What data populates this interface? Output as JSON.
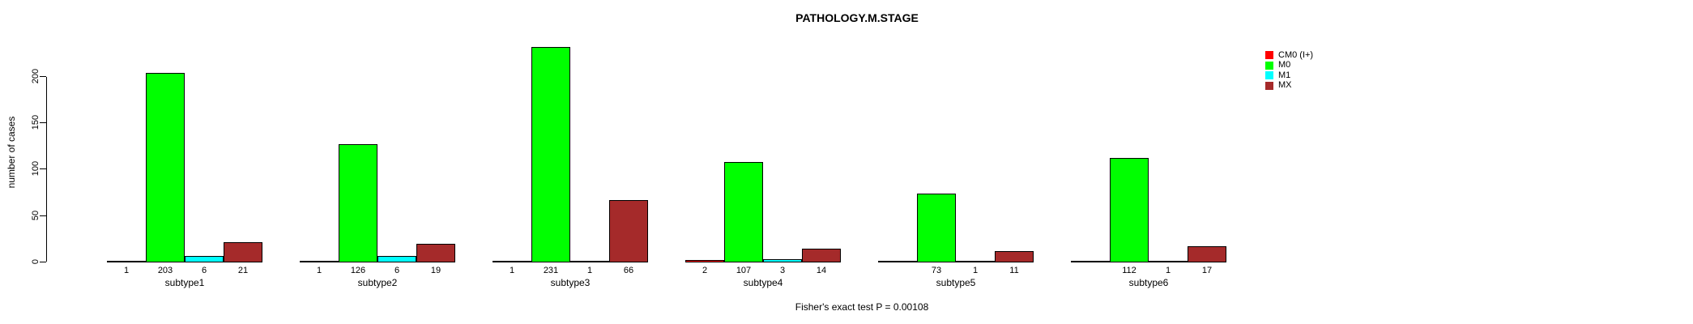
{
  "chart_data": {
    "type": "bar",
    "title": "PATHOLOGY.M.STAGE",
    "ylabel": "number of cases",
    "xlabel": "",
    "yticks": [
      0,
      50,
      100,
      150,
      200
    ],
    "ylim": [
      0,
      240
    ],
    "grid": false,
    "legend_position": "right",
    "bar_value_labels": true,
    "categories": [
      "subtype1",
      "subtype2",
      "subtype3",
      "subtype4",
      "subtype5",
      "subtype6"
    ],
    "series": [
      {
        "name": "CM0 (I+)",
        "color": "#FF0000",
        "values": [
          1,
          1,
          1,
          2,
          null,
          null
        ]
      },
      {
        "name": "M0",
        "color": "#00FF00",
        "values": [
          203,
          126,
          231,
          107,
          73,
          112
        ]
      },
      {
        "name": "M1",
        "color": "#00FFFF",
        "values": [
          6,
          6,
          1,
          3,
          1,
          1
        ]
      },
      {
        "name": "MX",
        "color": "#A52A2A",
        "values": [
          21,
          19,
          66,
          14,
          11,
          17
        ]
      }
    ],
    "footnote": "Fisher's exact test P = 0.00108"
  }
}
